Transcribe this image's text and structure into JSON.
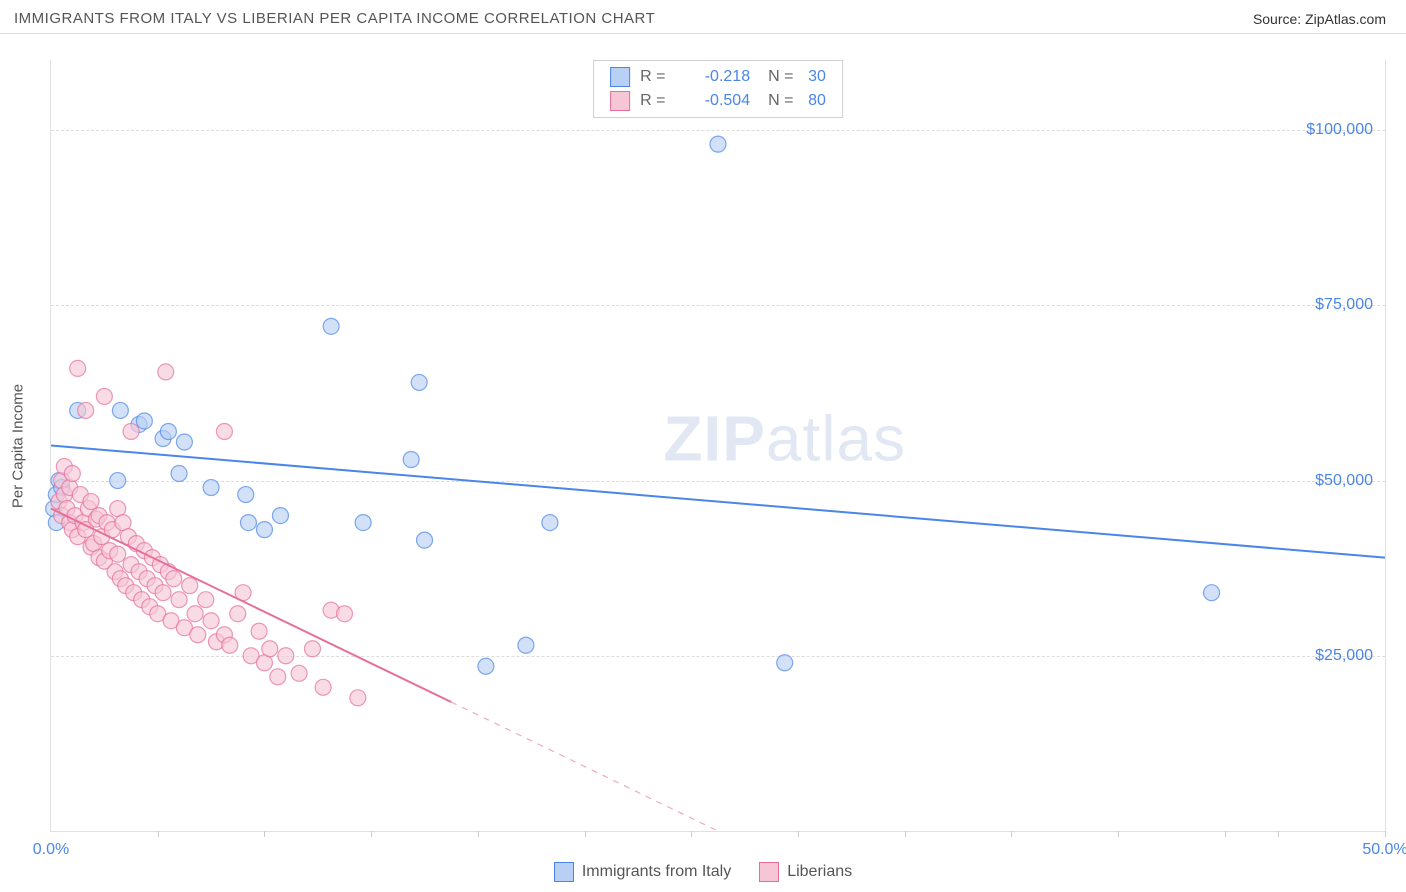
{
  "header": {
    "title": "IMMIGRANTS FROM ITALY VS LIBERIAN PER CAPITA INCOME CORRELATION CHART",
    "source_prefix": "Source: ",
    "source_name": "ZipAtlas.com"
  },
  "watermark": {
    "bold": "ZIP",
    "light": "atlas"
  },
  "chart": {
    "type": "scatter",
    "x_domain": [
      0,
      50
    ],
    "y_domain": [
      0,
      110000
    ],
    "background_color": "#ffffff",
    "grid_color": "#dcdcdc",
    "axis_color": "#e0e0e0",
    "y_axis_title": "Per Capita Income",
    "y_ticks": [
      {
        "v": 25000,
        "label": "$25,000"
      },
      {
        "v": 50000,
        "label": "$50,000"
      },
      {
        "v": 75000,
        "label": "$75,000"
      },
      {
        "v": 100000,
        "label": "$100,000"
      }
    ],
    "x_ticks_minor": [
      4,
      8,
      12,
      16,
      20,
      24,
      28,
      32,
      36,
      40,
      44,
      46,
      50
    ],
    "x_labels": [
      {
        "v": 0,
        "label": "0.0%"
      },
      {
        "v": 50,
        "label": "50.0%"
      }
    ],
    "marker_radius": 8,
    "marker_stroke_width": 1.2,
    "marker_fill_opacity": 0.28,
    "line_width": 2,
    "series": [
      {
        "name": "Immigrants from Italy",
        "color": "#4a86e8",
        "fill": "#b8d0f4",
        "stroke": "#4a86e8",
        "stats": {
          "R": "-0.218",
          "N": "30"
        },
        "regression": {
          "x1": 0,
          "y1": 55000,
          "x2": 50,
          "y2": 39000,
          "solid_until_x": 50
        },
        "points": [
          [
            0.1,
            46000
          ],
          [
            0.2,
            48000
          ],
          [
            0.3,
            50000
          ],
          [
            0.4,
            49000
          ],
          [
            0.2,
            44000
          ],
          [
            1.0,
            60000
          ],
          [
            2.6,
            60000
          ],
          [
            3.3,
            58000
          ],
          [
            3.5,
            58500
          ],
          [
            2.5,
            50000
          ],
          [
            4.2,
            56000
          ],
          [
            4.4,
            57000
          ],
          [
            5.0,
            55500
          ],
          [
            4.8,
            51000
          ],
          [
            6.0,
            49000
          ],
          [
            7.3,
            48000
          ],
          [
            7.4,
            44000
          ],
          [
            8.0,
            43000
          ],
          [
            8.6,
            45000
          ],
          [
            10.5,
            72000
          ],
          [
            11.7,
            44000
          ],
          [
            13.5,
            53000
          ],
          [
            13.8,
            64000
          ],
          [
            14.0,
            41500
          ],
          [
            17.8,
            26500
          ],
          [
            18.7,
            44000
          ],
          [
            25.0,
            98000
          ],
          [
            27.5,
            24000
          ],
          [
            43.5,
            34000
          ],
          [
            16.3,
            23500
          ]
        ]
      },
      {
        "name": "Liberians",
        "color": "#e66f9a",
        "fill": "#f6c6d6",
        "stroke": "#e66f9a",
        "stats": {
          "R": "-0.504",
          "N": "80"
        },
        "regression": {
          "x1": 0,
          "y1": 46000,
          "x2": 25,
          "y2": 0,
          "solid_until_x": 15
        },
        "points": [
          [
            0.3,
            47000
          ],
          [
            0.4,
            45000
          ],
          [
            0.4,
            50000
          ],
          [
            0.5,
            48000
          ],
          [
            0.5,
            52000
          ],
          [
            0.6,
            46000
          ],
          [
            0.7,
            44000
          ],
          [
            0.7,
            49000
          ],
          [
            0.8,
            43000
          ],
          [
            0.8,
            51000
          ],
          [
            0.9,
            45000
          ],
          [
            1.0,
            42000
          ],
          [
            1.0,
            66000
          ],
          [
            1.1,
            48000
          ],
          [
            1.2,
            44000
          ],
          [
            1.3,
            60000
          ],
          [
            1.3,
            43000
          ],
          [
            1.4,
            46000
          ],
          [
            1.5,
            40500
          ],
          [
            1.5,
            47000
          ],
          [
            1.6,
            41000
          ],
          [
            1.7,
            44500
          ],
          [
            1.8,
            39000
          ],
          [
            1.8,
            45000
          ],
          [
            1.9,
            42000
          ],
          [
            2.0,
            38500
          ],
          [
            2.0,
            62000
          ],
          [
            2.1,
            44000
          ],
          [
            2.2,
            40000
          ],
          [
            2.3,
            43000
          ],
          [
            2.4,
            37000
          ],
          [
            2.5,
            46000
          ],
          [
            2.5,
            39500
          ],
          [
            2.6,
            36000
          ],
          [
            2.7,
            44000
          ],
          [
            2.8,
            35000
          ],
          [
            2.9,
            42000
          ],
          [
            3.0,
            38000
          ],
          [
            3.0,
            57000
          ],
          [
            3.1,
            34000
          ],
          [
            3.2,
            41000
          ],
          [
            3.3,
            37000
          ],
          [
            3.4,
            33000
          ],
          [
            3.5,
            40000
          ],
          [
            3.6,
            36000
          ],
          [
            3.7,
            32000
          ],
          [
            3.8,
            39000
          ],
          [
            3.9,
            35000
          ],
          [
            4.0,
            31000
          ],
          [
            4.1,
            38000
          ],
          [
            4.2,
            34000
          ],
          [
            4.3,
            65500
          ],
          [
            4.4,
            37000
          ],
          [
            4.5,
            30000
          ],
          [
            4.6,
            36000
          ],
          [
            4.8,
            33000
          ],
          [
            5.0,
            29000
          ],
          [
            5.2,
            35000
          ],
          [
            5.4,
            31000
          ],
          [
            5.5,
            28000
          ],
          [
            5.8,
            33000
          ],
          [
            6.0,
            30000
          ],
          [
            6.2,
            27000
          ],
          [
            6.5,
            28000
          ],
          [
            6.7,
            26500
          ],
          [
            7.0,
            31000
          ],
          [
            7.2,
            34000
          ],
          [
            7.5,
            25000
          ],
          [
            7.8,
            28500
          ],
          [
            8.0,
            24000
          ],
          [
            8.2,
            26000
          ],
          [
            8.5,
            22000
          ],
          [
            8.8,
            25000
          ],
          [
            9.3,
            22500
          ],
          [
            9.8,
            26000
          ],
          [
            10.2,
            20500
          ],
          [
            10.5,
            31500
          ],
          [
            11.0,
            31000
          ],
          [
            11.5,
            19000
          ],
          [
            6.5,
            57000
          ]
        ]
      }
    ]
  },
  "legend": {
    "r_prefix": "R =",
    "n_prefix": "N ="
  }
}
